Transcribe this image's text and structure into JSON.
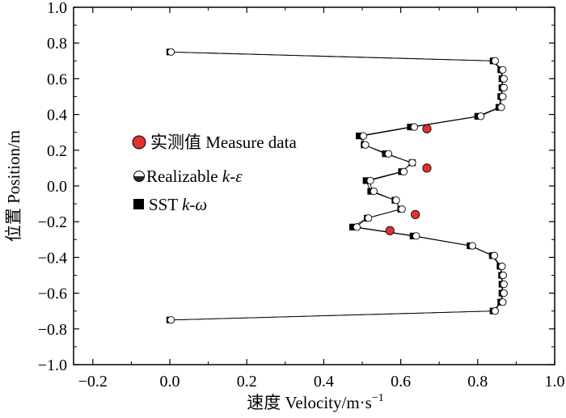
{
  "chart_data": {
    "type": "scatter",
    "title": "",
    "xlabel": "速度 Velocity/m·s⁻¹",
    "ylabel": "位置 Position/m",
    "xlim": [
      -0.25,
      1.0
    ],
    "ylim": [
      -1.0,
      1.0
    ],
    "xticks": [
      "−0.2",
      "0.0",
      "0.2",
      "0.4",
      "0.6",
      "0.8",
      "1.0"
    ],
    "xtick_values": [
      -0.2,
      0.0,
      0.2,
      0.4,
      0.6,
      0.8,
      1.0
    ],
    "yticks": [
      "1.0",
      "0.8",
      "0.6",
      "0.4",
      "0.2",
      "0.0",
      "−0.2",
      "−0.4",
      "−0.6",
      "−0.8",
      "−1.0"
    ],
    "ytick_values": [
      1.0,
      0.8,
      0.6,
      0.4,
      0.2,
      0.0,
      -0.2,
      -0.4,
      -0.6,
      -0.8,
      -1.0
    ],
    "legend_position": "center-left",
    "series": [
      {
        "name": "实测值 Measure data",
        "marker": "circle-filled",
        "color": "#e03030",
        "points": [
          [
            0.668,
            0.32
          ],
          [
            0.668,
            0.1
          ],
          [
            0.638,
            -0.16
          ],
          [
            0.572,
            -0.25
          ]
        ]
      },
      {
        "name": "Realizable k-ε",
        "marker": "circle-open",
        "color": "#000000",
        "points": [
          [
            0.0,
            0.75
          ],
          [
            0.842,
            0.7
          ],
          [
            0.862,
            0.65
          ],
          [
            0.865,
            0.6
          ],
          [
            0.865,
            0.55
          ],
          [
            0.862,
            0.5
          ],
          [
            0.858,
            0.44
          ],
          [
            0.805,
            0.39
          ],
          [
            0.632,
            0.33
          ],
          [
            0.5,
            0.28
          ],
          [
            0.505,
            0.23
          ],
          [
            0.565,
            0.18
          ],
          [
            0.627,
            0.13
          ],
          [
            0.605,
            0.08
          ],
          [
            0.518,
            0.03
          ],
          [
            0.527,
            -0.03
          ],
          [
            0.585,
            -0.08
          ],
          [
            0.6,
            -0.13
          ],
          [
            0.513,
            -0.18
          ],
          [
            0.483,
            -0.23
          ],
          [
            0.637,
            -0.28
          ],
          [
            0.783,
            -0.335
          ],
          [
            0.84,
            -0.39
          ],
          [
            0.86,
            -0.45
          ],
          [
            0.863,
            -0.5
          ],
          [
            0.865,
            -0.55
          ],
          [
            0.865,
            -0.6
          ],
          [
            0.862,
            -0.65
          ],
          [
            0.842,
            -0.7
          ],
          [
            0.0,
            -0.75
          ]
        ]
      },
      {
        "name": "SST k-ω",
        "marker": "square-filled",
        "color": "#000000",
        "points": [
          [
            0.0,
            0.75
          ],
          [
            0.84,
            0.7
          ],
          [
            0.86,
            0.65
          ],
          [
            0.863,
            0.6
          ],
          [
            0.863,
            0.55
          ],
          [
            0.86,
            0.5
          ],
          [
            0.855,
            0.44
          ],
          [
            0.8,
            0.39
          ],
          [
            0.625,
            0.33
          ],
          [
            0.492,
            0.28
          ],
          [
            0.505,
            0.23
          ],
          [
            0.56,
            0.18
          ],
          [
            0.63,
            0.13
          ],
          [
            0.602,
            0.08
          ],
          [
            0.51,
            0.03
          ],
          [
            0.522,
            -0.03
          ],
          [
            0.585,
            -0.08
          ],
          [
            0.6,
            -0.13
          ],
          [
            0.513,
            -0.18
          ],
          [
            0.475,
            -0.23
          ],
          [
            0.632,
            -0.28
          ],
          [
            0.78,
            -0.335
          ],
          [
            0.838,
            -0.39
          ],
          [
            0.858,
            -0.45
          ],
          [
            0.862,
            -0.5
          ],
          [
            0.863,
            -0.55
          ],
          [
            0.863,
            -0.6
          ],
          [
            0.86,
            -0.65
          ],
          [
            0.84,
            -0.7
          ],
          [
            0.0,
            -0.75
          ]
        ]
      }
    ],
    "legend_labels": {
      "measure": "实测值 Measure data",
      "realizable_prefix": "Realizable ",
      "realizable_model": "k-ε",
      "sst_prefix": "SST ",
      "sst_model": "k-ω"
    },
    "xlabel_parts": {
      "main": "速度 Velocity/m·s",
      "sup": "−1"
    }
  }
}
